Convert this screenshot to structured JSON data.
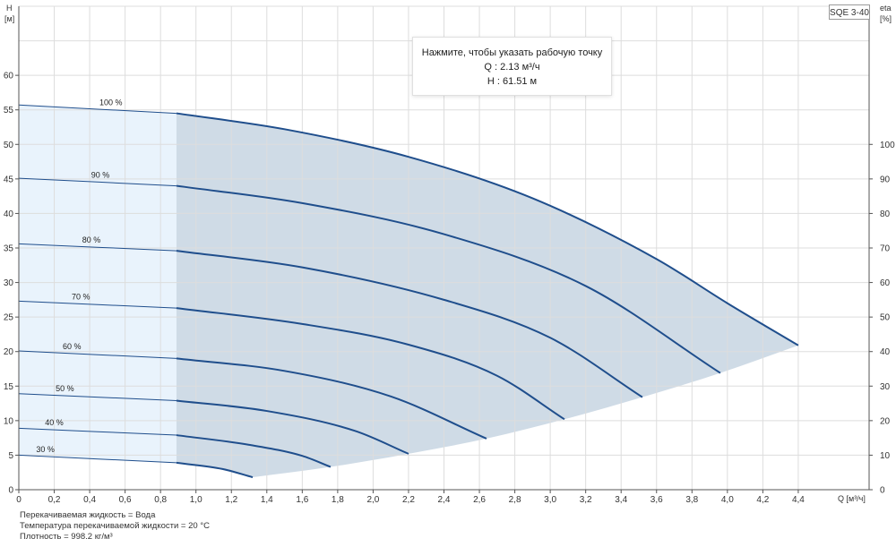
{
  "header": {
    "model": "SQE 3-40",
    "left_axis_unit_top": "H",
    "left_axis_unit_bottom": "[м]",
    "right_axis_unit_top": "eta",
    "right_axis_unit_bottom": "[%]",
    "x_axis_label": "Q [м³/ч]"
  },
  "tooltip": {
    "line1": "Нажмите, чтобы указать рабочую точку",
    "line2": "Q : 2.13 м³/ч",
    "line3": "H : 61.51 м"
  },
  "footer": {
    "line1": "Перекачиваемая жидкость = Вода",
    "line2": "Температура перекачиваемой жидкости = 20 °C",
    "line3": "Плотность = 998.2 кг/м³"
  },
  "colors": {
    "curve": "#1f4e8c",
    "region_fill": "#cfdbe6",
    "left_band_fill": "#e9f3fc",
    "grid": "#dddddd",
    "axis": "#555555"
  },
  "chart_data": {
    "type": "line",
    "xlabel": "Q [м³/ч]",
    "ylabel": "H [м]",
    "y2label": "eta [%]",
    "xlim": [
      0,
      4.8
    ],
    "ylim": [
      0,
      70
    ],
    "y2lim": [
      0,
      140
    ],
    "x_ticks": [
      "0",
      "0,2",
      "0,4",
      "0,6",
      "0,8",
      "1,0",
      "1,2",
      "1,4",
      "1,6",
      "1,8",
      "2,0",
      "2,2",
      "2,4",
      "2,6",
      "2,8",
      "3,0",
      "3,2",
      "3,4",
      "3,6",
      "3,8",
      "4,0",
      "4,2",
      "4,4"
    ],
    "y_ticks": [
      "0",
      "5",
      "10",
      "15",
      "20",
      "25",
      "30",
      "35",
      "40",
      "45",
      "50",
      "55",
      "60"
    ],
    "y2_ticks": [
      "0",
      "10",
      "20",
      "30",
      "40",
      "50",
      "60",
      "70",
      "80",
      "90",
      "100"
    ],
    "grid": true,
    "allowed_min_flow": 0.89,
    "series": [
      {
        "name": "100 %",
        "q_max": 4.4,
        "points": [
          [
            0,
            55.7
          ],
          [
            0.89,
            54.5
          ],
          [
            1.5,
            52.2
          ],
          [
            2.2,
            48.2
          ],
          [
            2.9,
            42.2
          ],
          [
            3.6,
            33.4
          ],
          [
            4.0,
            27.0
          ],
          [
            4.4,
            20.9
          ]
        ]
      },
      {
        "name": "90 %",
        "q_max": 3.96,
        "points": [
          [
            0,
            45.1
          ],
          [
            0.89,
            44.0
          ],
          [
            1.6,
            41.5
          ],
          [
            2.4,
            37.0
          ],
          [
            3.2,
            29.5
          ],
          [
            3.96,
            16.9
          ]
        ]
      },
      {
        "name": "80 %",
        "q_max": 3.52,
        "points": [
          [
            0,
            35.6
          ],
          [
            0.89,
            34.6
          ],
          [
            1.6,
            32.2
          ],
          [
            2.4,
            27.5
          ],
          [
            3.0,
            22.0
          ],
          [
            3.52,
            13.4
          ]
        ]
      },
      {
        "name": "70 %",
        "q_max": 3.08,
        "points": [
          [
            0,
            27.3
          ],
          [
            0.89,
            26.3
          ],
          [
            1.6,
            24.0
          ],
          [
            2.2,
            21.0
          ],
          [
            2.7,
            16.5
          ],
          [
            3.08,
            10.2
          ]
        ]
      },
      {
        "name": "60 %",
        "q_max": 2.64,
        "points": [
          [
            0,
            20.1
          ],
          [
            0.89,
            19.0
          ],
          [
            1.5,
            17.2
          ],
          [
            2.1,
            13.5
          ],
          [
            2.64,
            7.4
          ]
        ]
      },
      {
        "name": "50 %",
        "q_max": 2.2,
        "points": [
          [
            0,
            13.9
          ],
          [
            0.89,
            12.9
          ],
          [
            1.4,
            11.4
          ],
          [
            1.9,
            8.5
          ],
          [
            2.2,
            5.2
          ]
        ]
      },
      {
        "name": "40 %",
        "q_max": 1.76,
        "points": [
          [
            0,
            8.9
          ],
          [
            0.89,
            7.9
          ],
          [
            1.3,
            6.5
          ],
          [
            1.6,
            4.9
          ],
          [
            1.76,
            3.3
          ]
        ]
      },
      {
        "name": "30 %",
        "q_max": 1.32,
        "points": [
          [
            0,
            5.0
          ],
          [
            0.89,
            3.9
          ],
          [
            1.15,
            3.0
          ],
          [
            1.32,
            1.8
          ]
        ]
      }
    ]
  }
}
